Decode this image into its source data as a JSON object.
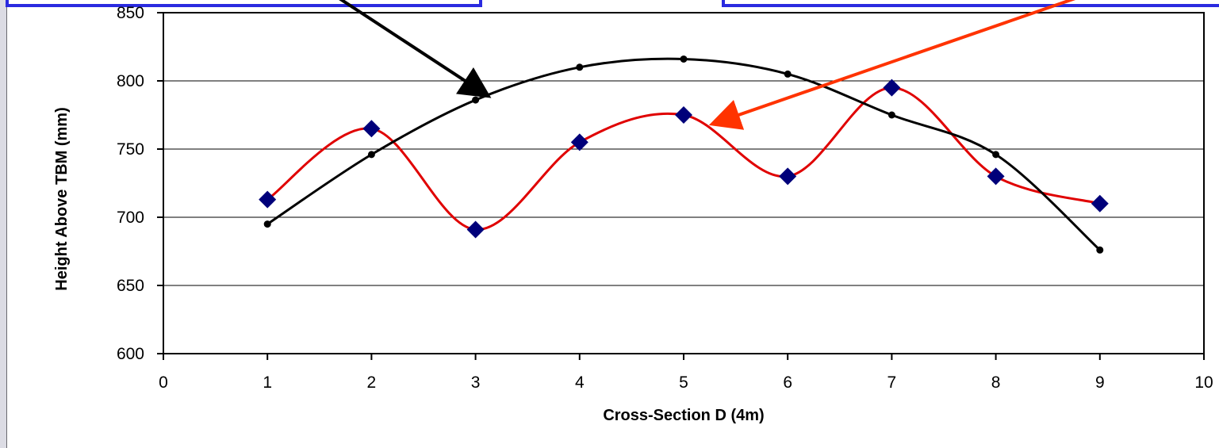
{
  "chart_data": {
    "type": "line",
    "xlabel": "Cross-Section D (4m)",
    "ylabel": "Height Above TBM (mm)",
    "xlim": [
      0,
      10
    ],
    "ylim": [
      600,
      850
    ],
    "x_ticks": [
      "0",
      "1",
      "2",
      "3",
      "4",
      "5",
      "6",
      "7",
      "8",
      "9",
      "10"
    ],
    "y_ticks": [
      "600",
      "650",
      "700",
      "750",
      "800",
      "850"
    ],
    "grid": "horizontal",
    "legend": "none",
    "series": [
      {
        "marker": "diamond",
        "color": "#e00000",
        "marker_color": "#00007a",
        "x": [
          1,
          2,
          3,
          4,
          5,
          6,
          7,
          8,
          9
        ],
        "y": [
          713,
          765,
          691,
          755,
          775,
          730,
          795,
          730,
          710
        ]
      },
      {
        "marker": "dot",
        "color": "#000000",
        "marker_color": "#000000",
        "x": [
          1,
          2,
          3,
          4,
          5,
          6,
          7,
          8,
          9
        ],
        "y": [
          695,
          746,
          786,
          810,
          816,
          805,
          775,
          746,
          676
        ]
      }
    ],
    "annotations": [
      {
        "type": "arrow",
        "color": "#000000",
        "from": [
          1.5,
          870
        ],
        "to": [
          3.1,
          790
        ]
      },
      {
        "type": "arrow",
        "color": "#ff3300",
        "from": [
          9.2,
          872
        ],
        "to": [
          5.3,
          769
        ]
      }
    ],
    "header_boxes": [
      {
        "color": "#2a2ae0"
      },
      {
        "color": "#2a2ae0"
      }
    ]
  }
}
